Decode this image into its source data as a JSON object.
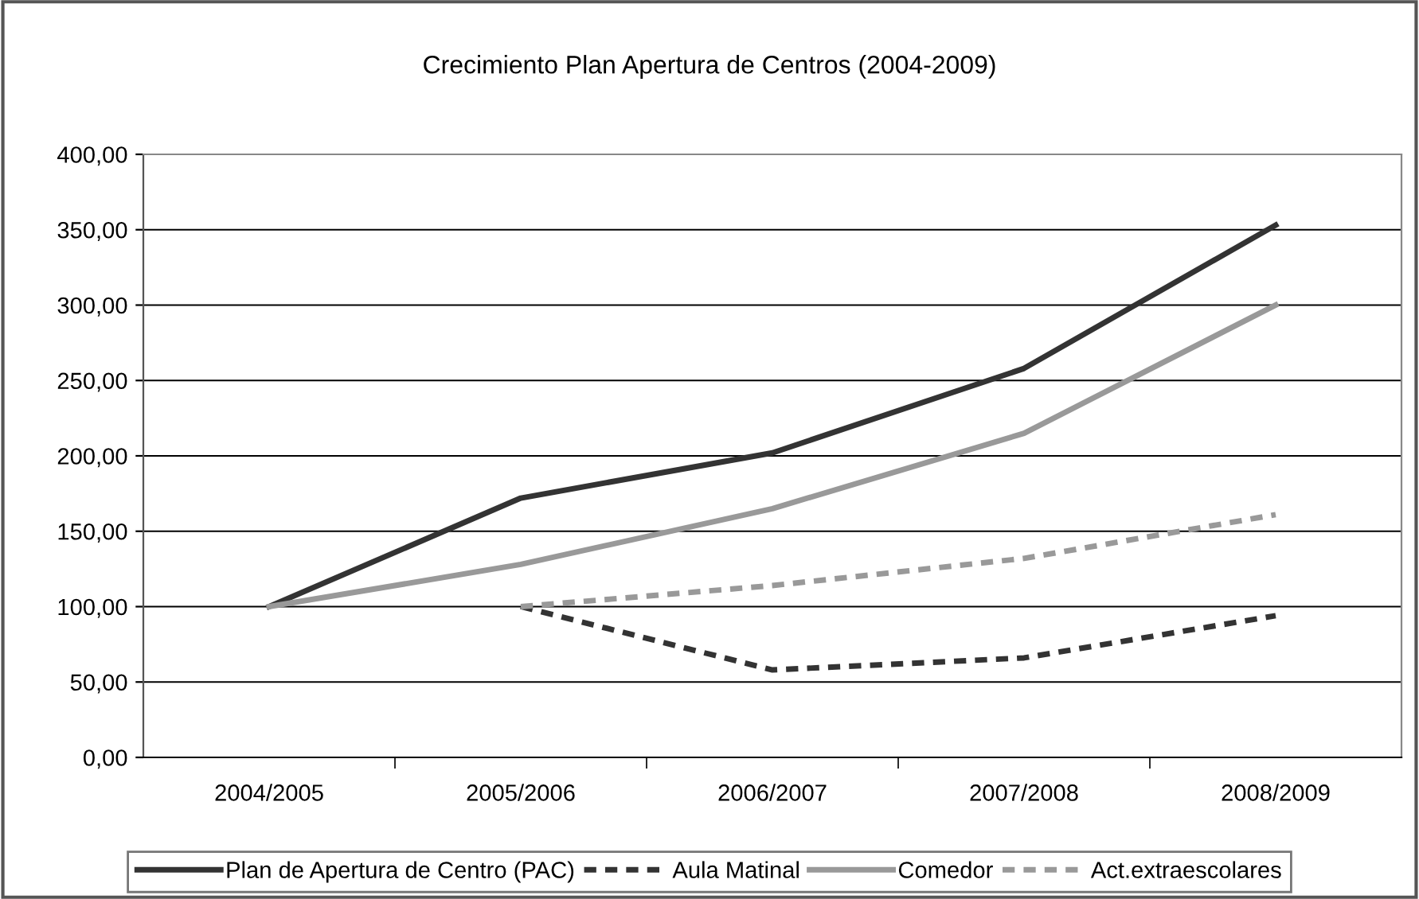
{
  "chart_data": {
    "type": "line",
    "title": "Crecimiento Plan Apertura de Centros (2004-2009)",
    "categories": [
      "2004/2005",
      "2005/2006",
      "2006/2007",
      "2007/2008",
      "2008/2009"
    ],
    "series": [
      {
        "name": "Plan de Apertura de Centro (PAC)",
        "color": "#333333",
        "line_style": "solid",
        "values": [
          100,
          172,
          202,
          258,
          353
        ]
      },
      {
        "name": "Aula Matinal",
        "color": "#333333",
        "line_style": "dashed",
        "values": [
          null,
          100,
          58,
          66,
          94
        ]
      },
      {
        "name": "Comedor",
        "color": "#999999",
        "line_style": "solid",
        "values": [
          100,
          128,
          165,
          215,
          300
        ]
      },
      {
        "name": "Act.extraescolares",
        "color": "#999999",
        "line_style": "dashed",
        "values": [
          null,
          100,
          114,
          132,
          161
        ]
      }
    ],
    "ylim": [
      0,
      400
    ],
    "yticks": [
      {
        "value": 0,
        "label": "0,00"
      },
      {
        "value": 50,
        "label": "50,00"
      },
      {
        "value": 100,
        "label": "100,00"
      },
      {
        "value": 150,
        "label": "150,00"
      },
      {
        "value": 200,
        "label": "200,00"
      },
      {
        "value": 250,
        "label": "250,00"
      },
      {
        "value": 300,
        "label": "300,00"
      },
      {
        "value": 350,
        "label": "350,00"
      },
      {
        "value": 400,
        "label": "400,00"
      }
    ],
    "grid": "y",
    "legend": "bottom",
    "marker": "none"
  }
}
